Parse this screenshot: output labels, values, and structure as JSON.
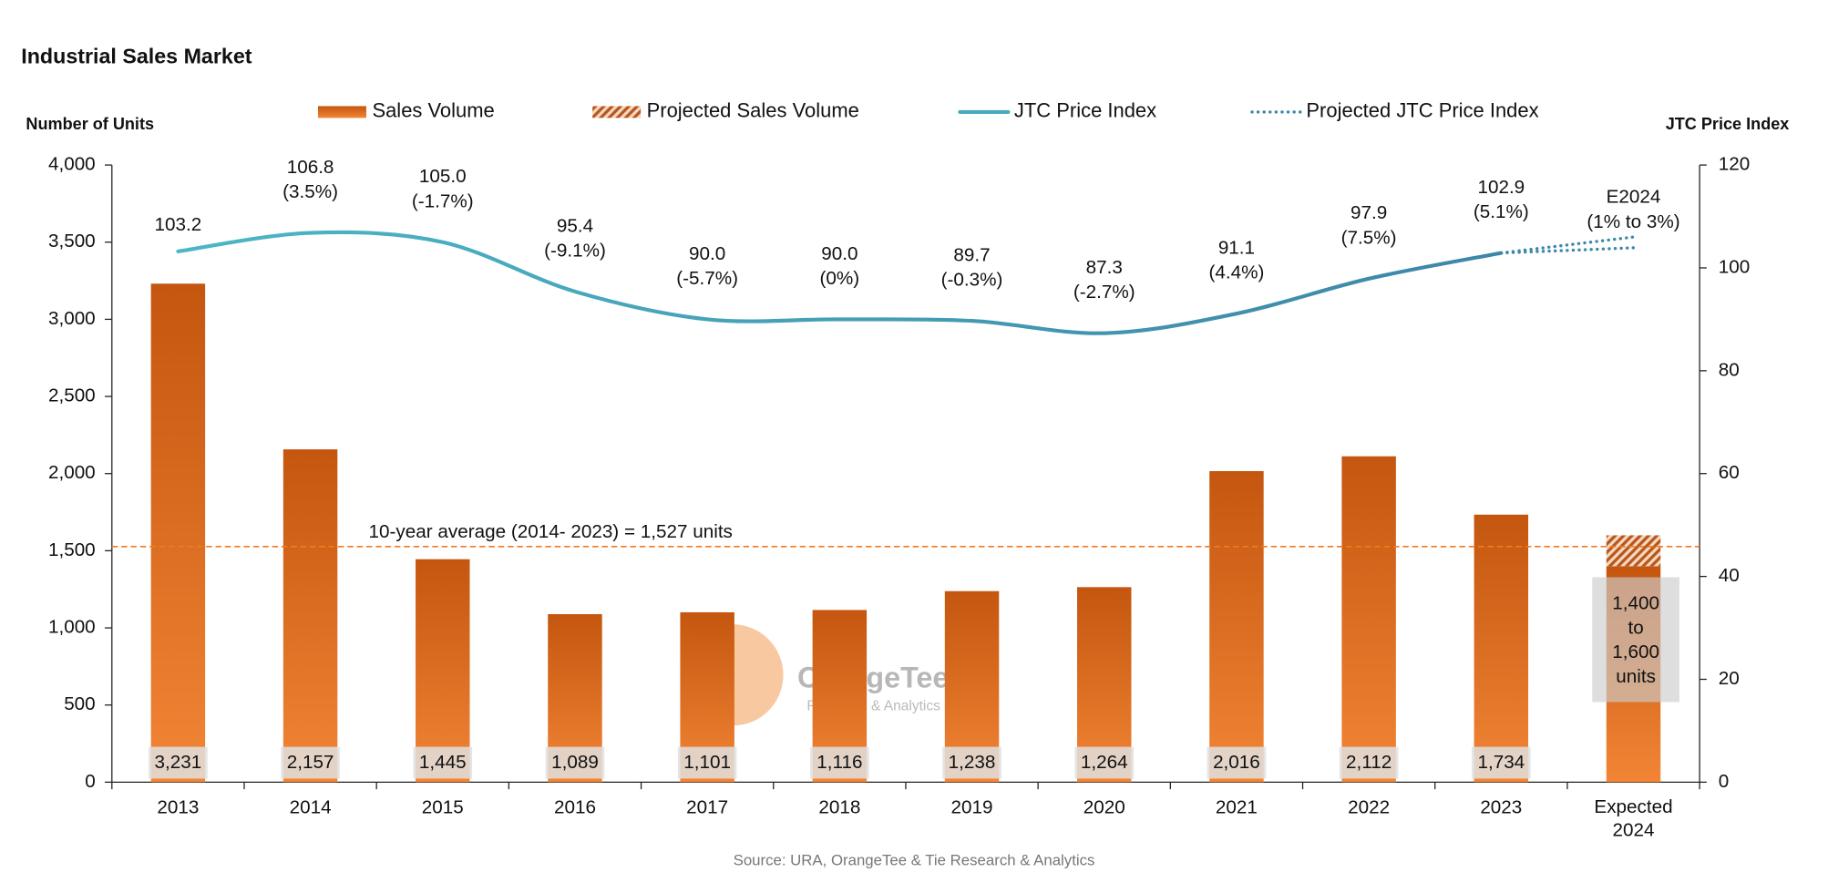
{
  "chart_data": {
    "type": "bar_line",
    "title": "Industrial Sales Market",
    "y_label": "Number of Units",
    "y2_label": "JTC Price Index",
    "source": "Source: URA, OrangeTee & Tie Research & Analytics",
    "watermark": {
      "name": "OrangeTee",
      "tagline": "Research & Analytics"
    },
    "categories": [
      "2013",
      "2014",
      "2015",
      "2016",
      "2017",
      "2018",
      "2019",
      "2020",
      "2021",
      "2022",
      "2023",
      "Expected 2024"
    ],
    "ylim": [
      0,
      4000
    ],
    "yticks": [
      0,
      500,
      {
        "value": 1000,
        "label": "1,000"
      },
      {
        "value": 1500,
        "label": "1,500"
      },
      {
        "value": 2000,
        "label": "2,000"
      },
      {
        "value": 2500,
        "label": "2,500"
      },
      {
        "value": 3000,
        "label": "3,000"
      },
      {
        "value": 3500,
        "label": "3,500"
      },
      {
        "value": 4000,
        "label": "4,000"
      }
    ],
    "y2lim": [
      0,
      120
    ],
    "y2ticks": [
      0,
      20,
      40,
      60,
      80,
      100,
      120
    ],
    "series": [
      {
        "name": "Sales Volume",
        "kind": "bar",
        "color": "#e0701f",
        "values": [
          3231,
          2157,
          1445,
          1089,
          1101,
          1116,
          1238,
          1264,
          2016,
          2112,
          1734,
          1400
        ],
        "value_labels": [
          "3,231",
          "2,157",
          "1,445",
          "1,089",
          "1,101",
          "1,116",
          "1,238",
          "1,264",
          "2,016",
          "2,112",
          "1,734",
          null
        ]
      },
      {
        "name": "Projected Sales Volume",
        "kind": "bar_hatched",
        "color": "#b8571a",
        "values": [
          null,
          null,
          null,
          null,
          null,
          null,
          null,
          null,
          null,
          null,
          null,
          200
        ]
      },
      {
        "name": "JTC Price Index",
        "kind": "line",
        "axis": "y2",
        "color": "#46a9bd",
        "values": [
          103.2,
          106.8,
          105.0,
          95.4,
          90.0,
          90.0,
          89.7,
          87.3,
          91.1,
          97.9,
          102.9,
          null
        ],
        "value_labels": [
          "103.2",
          "106.8",
          "105.0",
          "95.4",
          "90.0",
          "90.0",
          "89.7",
          "87.3",
          "91.1",
          "97.9",
          "102.9",
          null
        ],
        "changes": [
          null,
          "(3.5%)",
          "(-1.7%)",
          "(-9.1%)",
          "(-5.7%)",
          "(0%)",
          "(-0.3%)",
          "(-2.7%)",
          "(4.4%)",
          "(7.5%)",
          "(5.1%)",
          null
        ]
      },
      {
        "name": "Projected JTC Price Index",
        "kind": "dotted",
        "axis": "y2",
        "color": "#3d88a8",
        "values": [
          null,
          null,
          null,
          null,
          null,
          null,
          null,
          null,
          null,
          null,
          102.9,
          106.0
        ],
        "values_low": [
          null,
          null,
          null,
          null,
          null,
          null,
          null,
          null,
          null,
          null,
          102.9,
          103.9
        ]
      }
    ],
    "average": {
      "value": 1527,
      "label": "10-year average (2014- 2023) = 1,527 units",
      "color": "#f07a22"
    },
    "projection_note": {
      "title": "E2024",
      "range": "(1% to 3%)",
      "lines": [
        "1,400",
        "to",
        "1,600",
        "units"
      ]
    }
  }
}
